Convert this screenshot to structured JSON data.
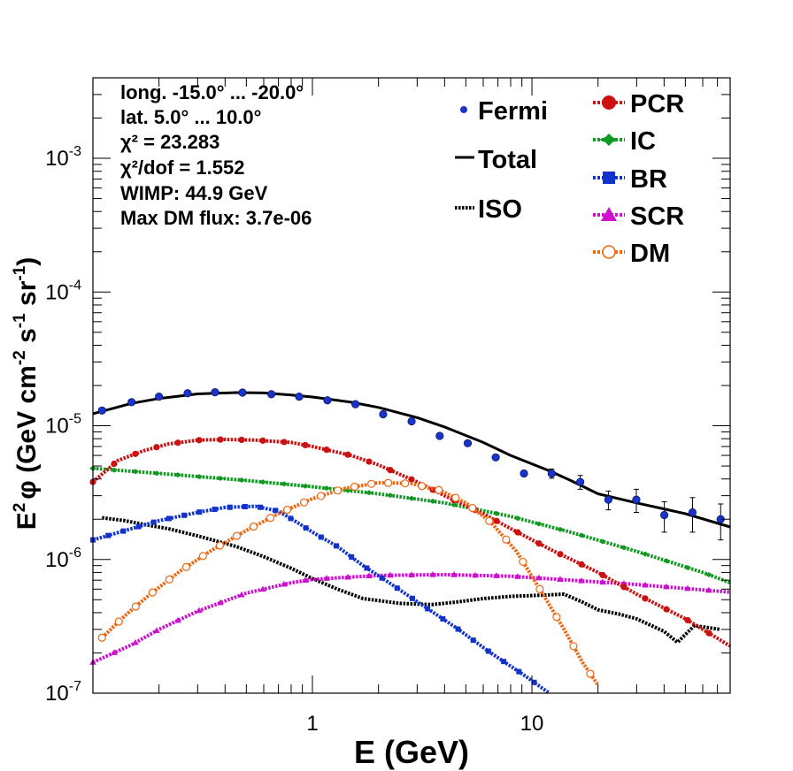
{
  "chart_data": {
    "type": "line",
    "xlabel": "E (GeV)",
    "ylabel": "E² φ (GeV cm⁻² s⁻¹ sr⁻¹)",
    "ylabel_parts": {
      "e": "E",
      "e_exp": "2",
      "phi": "φ (GeV cm",
      "exp1": "-2",
      "s": " s",
      "exp2": "-1",
      "sr": " sr",
      "exp3": "-1",
      "close": ")"
    },
    "xscale": "log",
    "yscale": "log",
    "xlim": [
      0.1,
      80
    ],
    "ylim": [
      1e-07,
      0.004
    ],
    "x_ticks": [
      {
        "value": 1,
        "label": "1"
      },
      {
        "value": 10,
        "label": "10"
      }
    ],
    "y_ticks": [
      {
        "value": 1e-07,
        "base": "10",
        "exp": "-7"
      },
      {
        "value": 1e-06,
        "base": "10",
        "exp": "-6"
      },
      {
        "value": 1e-05,
        "base": "10",
        "exp": "-5"
      },
      {
        "value": 0.0001,
        "base": "10",
        "exp": "-4"
      },
      {
        "value": 0.001,
        "base": "10",
        "exp": "-3"
      }
    ],
    "info_lines": [
      "long. -15.0° ... -20.0°",
      "lat. 5.0° ... 10.0°",
      "χ² = 23.283",
      "χ²/dof = 1.552",
      "WIMP: 44.9 GeV",
      "Max DM flux: 3.7e-06"
    ],
    "legend_left": [
      {
        "label": "Fermi",
        "key": "fermi"
      },
      {
        "label": "Total",
        "key": "total"
      },
      {
        "label": "ISO",
        "key": "iso"
      }
    ],
    "legend_right": [
      {
        "label": "PCR",
        "key": "pcr"
      },
      {
        "label": "IC",
        "key": "ic"
      },
      {
        "label": "BR",
        "key": "br"
      },
      {
        "label": "SCR",
        "key": "scr"
      },
      {
        "label": "DM",
        "key": "dm"
      }
    ],
    "series": [
      {
        "name": "Fermi",
        "key": "fermi",
        "color": "#1a33cc",
        "style": "points",
        "x": [
          0.11,
          0.15,
          0.2,
          0.27,
          0.36,
          0.48,
          0.65,
          0.87,
          1.17,
          1.57,
          2.1,
          2.83,
          3.8,
          5.1,
          6.84,
          9.2,
          12.3,
          16.6,
          22.3,
          29.9,
          40.1,
          53.9,
          72.4
        ],
        "y": [
          1.3e-05,
          1.5e-05,
          1.65e-05,
          1.75e-05,
          1.78e-05,
          1.77e-05,
          1.72e-05,
          1.65e-05,
          1.55e-05,
          1.45e-05,
          1.22e-05,
          1.08e-05,
          8.4e-06,
          7.4e-06,
          5.8e-06,
          4.4e-06,
          4.4e-06,
          3.8e-06,
          2.8e-06,
          2.8e-06,
          2.15e-06,
          2.25e-06,
          2e-06
        ],
        "yerr": [
          0,
          0,
          0,
          0,
          0,
          0,
          0,
          0,
          0,
          0,
          0,
          0,
          0,
          0,
          0,
          0,
          3.5e-07,
          4.5e-07,
          4.5e-07,
          5.5e-07,
          5.5e-07,
          6.5e-07,
          6e-07
        ]
      },
      {
        "name": "Total",
        "key": "total",
        "color": "#000000",
        "style": "solid",
        "x": [
          0.1,
          0.15,
          0.2,
          0.3,
          0.45,
          0.6,
          0.8,
          1.0,
          1.5,
          2.0,
          3.0,
          4.0,
          6.0,
          8.0,
          12.0,
          15.0,
          20.0,
          30.0,
          50.0,
          80.0
        ],
        "y": [
          1.23e-05,
          1.47e-05,
          1.6e-05,
          1.73e-05,
          1.77e-05,
          1.76e-05,
          1.7e-05,
          1.64e-05,
          1.5e-05,
          1.37e-05,
          1.15e-05,
          9.8e-06,
          7.5e-06,
          6e-06,
          4.6e-06,
          3.9e-06,
          3.1e-06,
          2.65e-06,
          2.2e-06,
          1.75e-06
        ]
      },
      {
        "name": "PCR",
        "key": "pcr",
        "color": "#cc1111",
        "style": "dotted",
        "x": [
          0.1,
          0.13,
          0.17,
          0.22,
          0.3,
          0.4,
          0.55,
          0.8,
          1.0,
          1.5,
          2.0,
          3.0,
          4.0,
          6.0,
          8.0,
          12.0,
          20.0,
          30.0,
          50.0,
          80.0
        ],
        "y": [
          3.8e-06,
          5.5e-06,
          6.5e-06,
          7.3e-06,
          7.8e-06,
          7.9e-06,
          7.8e-06,
          7.5e-06,
          7e-06,
          6e-06,
          5.1e-06,
          3.8e-06,
          3e-06,
          2.2e-06,
          1.7e-06,
          1.2e-06,
          8e-07,
          5.5e-07,
          3.6e-07,
          2.25e-07
        ]
      },
      {
        "name": "IC",
        "key": "ic",
        "color": "#119922",
        "style": "dotted",
        "x": [
          0.1,
          0.2,
          0.5,
          1.0,
          2.0,
          4.0,
          8.0,
          15.0,
          30.0,
          60.0,
          80.0
        ],
        "y": [
          4.8e-06,
          4.4e-06,
          3.9e-06,
          3.5e-06,
          3.1e-06,
          2.65e-06,
          2.1e-06,
          1.6e-06,
          1.15e-06,
          8e-07,
          6.7e-07
        ]
      },
      {
        "name": "BR",
        "key": "br",
        "color": "#1133cc",
        "style": "dotted",
        "x": [
          0.1,
          0.15,
          0.2,
          0.3,
          0.4,
          0.55,
          0.7,
          0.85,
          1.0,
          1.3,
          1.7,
          2.3,
          3.2,
          4.5,
          6.5,
          9.0,
          12.0
        ],
        "y": [
          1.4e-06,
          1.7e-06,
          1.95e-06,
          2.25e-06,
          2.45e-06,
          2.5e-06,
          2.3e-06,
          1.9e-06,
          1.6e-06,
          1.25e-06,
          9e-07,
          6.5e-07,
          4.5e-07,
          3.1e-07,
          2e-07,
          1.4e-07,
          1e-07
        ]
      },
      {
        "name": "SCR",
        "key": "scr",
        "color": "#cc11cc",
        "style": "dotted",
        "x": [
          0.1,
          0.15,
          0.2,
          0.3,
          0.5,
          0.8,
          1.0,
          2.0,
          4.0,
          8.0,
          15.0,
          30.0,
          80.0
        ],
        "y": [
          1.7e-07,
          2.3e-07,
          3e-07,
          4.1e-07,
          5.6e-07,
          6.7e-07,
          7.1e-07,
          7.6e-07,
          7.7e-07,
          7.5e-07,
          7e-07,
          6.5e-07,
          5.7e-07
        ]
      },
      {
        "name": "ISO",
        "key": "iso",
        "color": "#000000",
        "style": "dotted",
        "x": [
          0.11,
          0.14,
          0.18,
          0.22,
          0.3,
          0.45,
          0.6,
          0.8,
          1.0,
          1.3,
          1.7,
          2.5,
          3.5,
          4.5,
          6.0,
          8.0,
          11.0,
          14.0,
          17.0,
          20.0,
          25.0,
          30.0,
          40.0,
          46.0,
          55.0,
          72.0
        ],
        "y": [
          2.05e-06,
          1.95e-06,
          1.8e-06,
          1.7e-06,
          1.5e-06,
          1.25e-06,
          1.05e-06,
          8.6e-07,
          7.2e-07,
          6e-07,
          5.1e-07,
          4.7e-07,
          4.6e-07,
          4.8e-07,
          5.1e-07,
          5.3e-07,
          5.4e-07,
          5.5e-07,
          4.8e-07,
          4.2e-07,
          3.9e-07,
          3.6e-07,
          2.9e-07,
          2.4e-07,
          3.2e-07,
          3e-07
        ]
      },
      {
        "name": "DM",
        "key": "dm",
        "color": "#ee6611",
        "style": "dotted",
        "x": [
          0.11,
          0.14,
          0.18,
          0.25,
          0.35,
          0.5,
          0.7,
          1.0,
          1.4,
          2.0,
          2.8,
          3.8,
          5.0,
          6.5,
          8.5,
          11.0,
          14.0,
          17.0,
          20.0,
          22.0
        ],
        "y": [
          2.6e-07,
          3.8e-07,
          5.4e-07,
          8.2e-07,
          1.18e-06,
          1.65e-06,
          2.2e-06,
          2.85e-06,
          3.4e-06,
          3.75e-06,
          3.7e-06,
          3.3e-06,
          2.65e-06,
          1.9e-06,
          1.15e-06,
          5.8e-07,
          3e-07,
          1.7e-07,
          1.15e-07,
          9.5e-08
        ]
      }
    ]
  }
}
